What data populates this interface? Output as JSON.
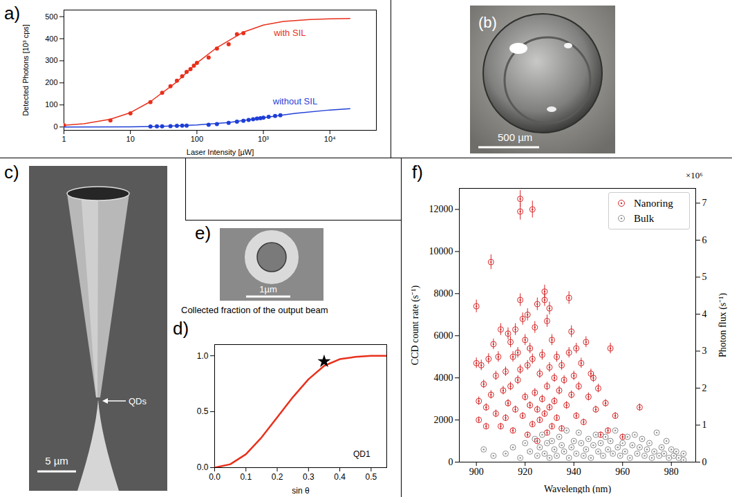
{
  "chart_data": [
    {
      "panel": "a)",
      "type": "scatter",
      "xlabel": "Laser Intensity [µW]",
      "ylabel": "Detected Photons [10³ cps]",
      "log": "x",
      "grid": false,
      "xlim": [
        1,
        50000
      ],
      "xticks": [
        1,
        10,
        100,
        {
          "value": 1000,
          "label": "10³"
        },
        {
          "value": 10000,
          "label": "10⁴"
        }
      ],
      "ylim": [
        -15,
        530
      ],
      "yticks": [
        0,
        100,
        200,
        300,
        400,
        500
      ],
      "series": [
        {
          "type": "scatter",
          "marker": "circle",
          "color": "#e8301c",
          "x": [
            1,
            5,
            10,
            20,
            30,
            40,
            50,
            60,
            70,
            80,
            90,
            100,
            150,
            200,
            300,
            400,
            500
          ],
          "values": [
            8,
            30,
            62,
            113,
            155,
            185,
            210,
            230,
            250,
            262,
            278,
            290,
            315,
            355,
            375,
            420,
            425
          ]
        },
        {
          "type": "line",
          "color": "#e8301c",
          "x": [
            1,
            2,
            5,
            10,
            20,
            50,
            100,
            200,
            500,
            1000,
            2000,
            5000,
            10000,
            20000
          ],
          "values": [
            8,
            15,
            35,
            65,
            115,
            205,
            290,
            360,
            430,
            462,
            478,
            487,
            490,
            492
          ]
        },
        {
          "type": "scatter",
          "marker": "circle",
          "color": "#1f3fd6",
          "x": [
            20,
            25,
            30,
            40,
            50,
            60,
            70,
            150,
            200,
            300,
            400,
            500,
            600,
            700,
            800,
            900,
            1000,
            1200,
            1500,
            1800
          ],
          "values": [
            2,
            3,
            3,
            4,
            5,
            6,
            6,
            10,
            13,
            19,
            24,
            28,
            32,
            35,
            38,
            40,
            42,
            46,
            50,
            53
          ]
        },
        {
          "type": "line",
          "color": "#1f3fd6",
          "x": [
            1,
            10,
            30,
            100,
            300,
            1000,
            3000,
            10000,
            20000
          ],
          "values": [
            0,
            1,
            3,
            9,
            20,
            42,
            62,
            77,
            83
          ]
        }
      ],
      "annotations": [
        {
          "text": "with SIL",
          "x": 2500,
          "y": 425,
          "color": "#e8301c"
        },
        {
          "text": "without SIL",
          "x": 3000,
          "y": 115,
          "color": "#1f3fd6"
        }
      ]
    },
    {
      "panel": "d)",
      "type": "line",
      "title": "Collected fraction of the output beam",
      "xlabel": "sin θ",
      "grid": false,
      "xlim": [
        0,
        0.55
      ],
      "xticks": [
        {
          "value": 0,
          "label": "0.0"
        },
        {
          "value": 0.1,
          "label": "0.1"
        },
        {
          "value": 0.2,
          "label": "0.2"
        },
        {
          "value": 0.3,
          "label": "0.3"
        },
        {
          "value": 0.4,
          "label": "0.4"
        },
        {
          "value": 0.5,
          "label": "0.5"
        }
      ],
      "ylim": [
        0,
        1.1
      ],
      "yticks": [
        {
          "value": 0,
          "label": "0.0"
        },
        {
          "value": 0.5,
          "label": "0.5"
        },
        {
          "value": 1,
          "label": "1.0"
        }
      ],
      "series": [
        {
          "type": "line",
          "color": "#e8301c",
          "x": [
            0,
            0.05,
            0.1,
            0.15,
            0.2,
            0.25,
            0.3,
            0.35,
            0.4,
            0.45,
            0.5,
            0.55
          ],
          "values": [
            0,
            0.03,
            0.12,
            0.27,
            0.45,
            0.63,
            0.79,
            0.91,
            0.97,
            0.99,
            1.0,
            1.0
          ]
        },
        {
          "type": "scatter",
          "marker": "star",
          "color": "#000000",
          "x": [
            0.35
          ],
          "values": [
            0.95
          ]
        }
      ],
      "annotations": [
        {
          "text": "QD1",
          "x": 0.47,
          "y": 0.12,
          "color": "#000000"
        }
      ]
    },
    {
      "panel": "f)",
      "type": "scatter",
      "xlabel": "Wavelength (nm)",
      "ylabel": "CCD count rate (s⁻¹)",
      "y2label": "Photon flux (s⁻¹)",
      "grid": false,
      "legend": "upper right",
      "xlim": [
        893,
        990
      ],
      "xticks": [
        900,
        920,
        940,
        960,
        980
      ],
      "ylim": [
        0,
        13000
      ],
      "yticks": [
        0,
        2000,
        4000,
        6000,
        8000,
        10000,
        12000
      ],
      "y2lim": [
        0,
        7.4
      ],
      "y2ticks": [
        0,
        1,
        2,
        3,
        4,
        5,
        6,
        7
      ],
      "annotations": [
        {
          "text": "×10⁶",
          "axis": "y2"
        }
      ],
      "series": [
        {
          "name": "Nanoring",
          "color": "#d62728",
          "marker": "circle",
          "x": [
            900,
            900,
            901,
            901,
            902,
            903,
            904,
            904,
            905,
            906,
            906,
            907,
            908,
            908,
            909,
            910,
            910,
            911,
            912,
            912,
            913,
            913,
            914,
            914,
            915,
            915,
            916,
            916,
            917,
            917,
            918,
            918,
            918,
            918,
            919,
            919,
            920,
            920,
            921,
            921,
            921,
            922,
            922,
            923,
            923,
            923,
            924,
            924,
            925,
            925,
            925,
            926,
            926,
            927,
            927,
            928,
            928,
            928,
            929,
            929,
            929,
            930,
            930,
            930,
            931,
            931,
            932,
            932,
            933,
            933,
            934,
            935,
            935,
            936,
            937,
            938,
            938,
            939,
            939,
            940,
            941,
            941,
            942,
            943,
            944,
            945,
            946,
            947,
            948,
            949,
            950,
            951,
            953,
            954,
            955,
            957,
            960,
            967
          ],
          "values": [
            7400,
            4700,
            2900,
            2000,
            4600,
            3700,
            2600,
            1700,
            4900,
            9500,
            3200,
            5600,
            4100,
            2300,
            5000,
            6300,
            1700,
            3400,
            4300,
            2100,
            6100,
            2800,
            5700,
            3600,
            5000,
            1500,
            6300,
            2500,
            5200,
            3900,
            12500,
            11900,
            7700,
            4400,
            6800,
            2200,
            5800,
            3100,
            7000,
            4600,
            1300,
            5400,
            2700,
            12000,
            4900,
            1800,
            6400,
            3300,
            7500,
            2500,
            1000,
            4200,
            2000,
            5100,
            3000,
            8100,
            7700,
            2300,
            6700,
            3600,
            1400,
            7300,
            4500,
            2600,
            5800,
            1700,
            4000,
            2900,
            5000,
            2100,
            3400,
            4600,
            1600,
            3900,
            2700,
            7800,
            5200,
            6200,
            3200,
            4100,
            5400,
            2200,
            3600,
            4700,
            1900,
            5700,
            3100,
            4200,
            4000,
            2500,
            3500,
            1300,
            2800,
            1500,
            5400,
            2200,
            1200,
            2600
          ],
          "errors": [
            300,
            250,
            200,
            150,
            250,
            200,
            180,
            150,
            250,
            350,
            200,
            250,
            220,
            180,
            250,
            280,
            150,
            200,
            220,
            160,
            280,
            180,
            260,
            200,
            250,
            140,
            280,
            170,
            250,
            210,
            400,
            400,
            300,
            220,
            290,
            160,
            260,
            190,
            290,
            230,
            130,
            250,
            180,
            400,
            240,
            150,
            280,
            200,
            300,
            170,
            120,
            220,
            150,
            250,
            190,
            310,
            300,
            160,
            290,
            200,
            130,
            300,
            230,
            170,
            260,
            150,
            210,
            180,
            250,
            160,
            200,
            230,
            140,
            210,
            180,
            300,
            250,
            280,
            190,
            220,
            250,
            160,
            200,
            240,
            150,
            260,
            190,
            220,
            210,
            170,
            200,
            130,
            180,
            140,
            250,
            160,
            130,
            170
          ]
        },
        {
          "name": "Bulk",
          "color": "#8c8c8c",
          "marker": "circle",
          "x": [
            903,
            907,
            912,
            915,
            918,
            920,
            922,
            924,
            925,
            926,
            927,
            928,
            929,
            930,
            931,
            932,
            933,
            934,
            935,
            936,
            937,
            938,
            939,
            940,
            941,
            942,
            943,
            944,
            945,
            946,
            947,
            948,
            949,
            950,
            951,
            952,
            953,
            954,
            955,
            956,
            957,
            958,
            959,
            960,
            961,
            962,
            963,
            964,
            965,
            966,
            967,
            968,
            969,
            970,
            971,
            972,
            973,
            974,
            975,
            976,
            977,
            978,
            979,
            980,
            981,
            982,
            983,
            985,
            985
          ],
          "values": [
            600,
            300,
            400,
            700,
            200,
            900,
            500,
            1100,
            300,
            700,
            1300,
            400,
            900,
            200,
            1000,
            600,
            300,
            1200,
            800,
            500,
            1500,
            200,
            700,
            1000,
            400,
            1400,
            900,
            300,
            600,
            1100,
            200,
            800,
            1300,
            500,
            900,
            300,
            1200,
            600,
            1000,
            400,
            1500,
            700,
            300,
            900,
            500,
            1200,
            200,
            800,
            1300,
            400,
            700,
            1100,
            300,
            600,
            900,
            200,
            500,
            1400,
            300,
            700,
            400,
            1000,
            200,
            600,
            300,
            500,
            200,
            400,
            100
          ]
        }
      ]
    }
  ],
  "images": [
    {
      "panel": "(b)",
      "scale_bar": "500 µm"
    },
    {
      "panel": "c)",
      "scale_bar": "5 µm",
      "label": "QDs"
    },
    {
      "panel": "e)",
      "scale_bar": "1µm"
    }
  ]
}
